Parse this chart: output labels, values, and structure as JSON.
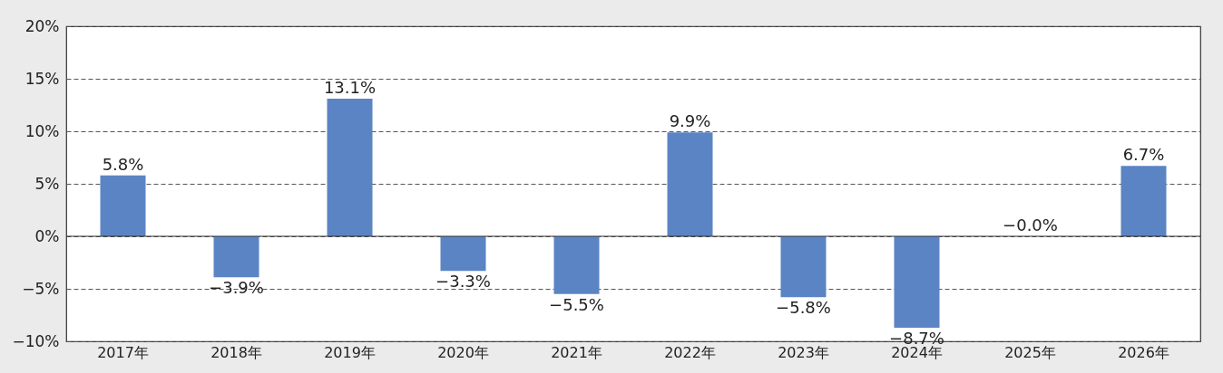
{
  "chart_data": {
    "type": "bar",
    "categories": [
      "2017年",
      "2018年",
      "2019年",
      "2020年",
      "2021年",
      "2022年",
      "2023年",
      "2024年",
      "2025年",
      "2026年"
    ],
    "values": [
      5.8,
      -3.9,
      13.1,
      -3.3,
      -5.5,
      9.9,
      -5.8,
      -8.7,
      0,
      6.7
    ],
    "value_labels": [
      "5.8%",
      "−3.9%",
      "13.1%",
      "−3.3%",
      "−5.5%",
      "9.9%",
      "−5.8%",
      "−8.7%",
      "−0.0%",
      "6.7%"
    ],
    "color": "#5b84c4",
    "ylim": [
      -10,
      20
    ],
    "yticks": [
      {
        "value": -10,
        "label": "−10%"
      },
      {
        "value": -5,
        "label": "−5%"
      },
      {
        "value": 0,
        "label": "0%"
      },
      {
        "value": 5,
        "label": "5%"
      },
      {
        "value": 10,
        "label": "10%"
      },
      {
        "value": 15,
        "label": "15%"
      },
      {
        "value": 20,
        "label": "20%"
      }
    ],
    "ref_lines": [
      {
        "axis": "y",
        "value": 0,
        "color": "#333333",
        "line_style": "solid"
      }
    ],
    "grid": "y"
  }
}
